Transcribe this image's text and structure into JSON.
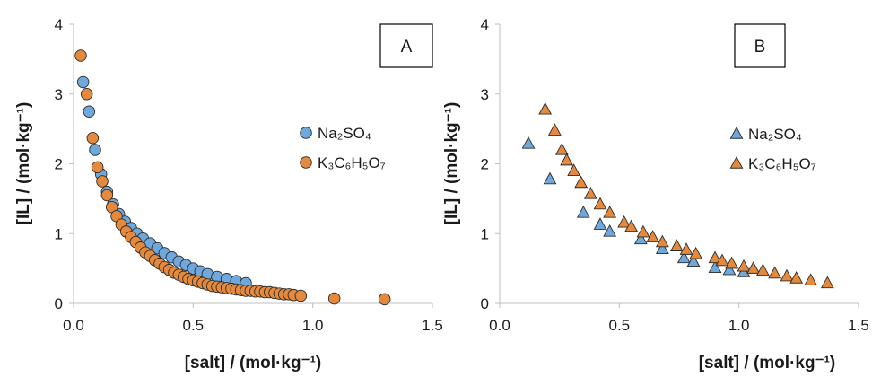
{
  "chart_data": [
    {
      "type": "scatter",
      "panel_label": "A",
      "xlabel": "[salt] / (mol·kg⁻¹)",
      "ylabel": "[IL] / (mol·kg⁻¹)",
      "xlim": [
        0,
        1.5
      ],
      "ylim": [
        0,
        4
      ],
      "xticks": [
        "0.0",
        "0.5",
        "1.0",
        "1.5"
      ],
      "yticks": [
        "0",
        "1",
        "2",
        "3",
        "4"
      ],
      "grid": false,
      "legend_position": "middle-right",
      "marker": "circle",
      "series": [
        {
          "name": "Na₂SO₄",
          "color": "#6fa8dc",
          "x": [
            0.04,
            0.065,
            0.09,
            0.115,
            0.14,
            0.165,
            0.19,
            0.215,
            0.24,
            0.265,
            0.29,
            0.32,
            0.35,
            0.38,
            0.41,
            0.44,
            0.47,
            0.5,
            0.53,
            0.56,
            0.6,
            0.64,
            0.68,
            0.72
          ],
          "y": [
            3.17,
            2.75,
            2.2,
            1.85,
            1.6,
            1.42,
            1.28,
            1.17,
            1.08,
            1.0,
            0.93,
            0.86,
            0.79,
            0.72,
            0.66,
            0.6,
            0.55,
            0.5,
            0.46,
            0.42,
            0.38,
            0.35,
            0.32,
            0.29
          ]
        },
        {
          "name": "K₃C₆H₅O₇",
          "color": "#e58a3d",
          "x": [
            0.03,
            0.055,
            0.08,
            0.1,
            0.12,
            0.14,
            0.16,
            0.18,
            0.2,
            0.22,
            0.24,
            0.26,
            0.28,
            0.3,
            0.32,
            0.34,
            0.36,
            0.38,
            0.4,
            0.42,
            0.44,
            0.46,
            0.48,
            0.5,
            0.52,
            0.54,
            0.56,
            0.58,
            0.6,
            0.62,
            0.64,
            0.66,
            0.68,
            0.7,
            0.72,
            0.74,
            0.76,
            0.78,
            0.8,
            0.82,
            0.84,
            0.86,
            0.88,
            0.9,
            0.92,
            0.95,
            1.09,
            1.3
          ],
          "y": [
            3.55,
            3.0,
            2.37,
            1.95,
            1.75,
            1.55,
            1.38,
            1.25,
            1.13,
            1.03,
            0.95,
            0.88,
            0.8,
            0.73,
            0.68,
            0.62,
            0.57,
            0.52,
            0.48,
            0.44,
            0.41,
            0.38,
            0.35,
            0.33,
            0.31,
            0.29,
            0.27,
            0.25,
            0.24,
            0.23,
            0.22,
            0.21,
            0.2,
            0.19,
            0.18,
            0.18,
            0.17,
            0.17,
            0.16,
            0.16,
            0.15,
            0.14,
            0.13,
            0.13,
            0.12,
            0.11,
            0.07,
            0.06
          ]
        }
      ]
    },
    {
      "type": "scatter",
      "panel_label": "B",
      "xlabel": "[salt] / (mol·kg⁻¹)",
      "ylabel": "[IL] / (mol·kg⁻¹)",
      "xlim": [
        0,
        1.5
      ],
      "ylim": [
        0,
        4
      ],
      "xticks": [
        "0.0",
        "0.5",
        "1.0",
        "1.5"
      ],
      "yticks": [
        "0",
        "1",
        "2",
        "3",
        "4"
      ],
      "grid": false,
      "legend_position": "middle-right",
      "marker": "triangle",
      "series": [
        {
          "name": "Na₂SO₄",
          "color": "#6fa8dc",
          "x": [
            0.12,
            0.21,
            0.35,
            0.42,
            0.46,
            0.59,
            0.68,
            0.77,
            0.81,
            0.9,
            0.96,
            1.02
          ],
          "y": [
            2.29,
            1.78,
            1.3,
            1.13,
            1.03,
            0.92,
            0.78,
            0.65,
            0.6,
            0.51,
            0.48,
            0.45
          ]
        },
        {
          "name": "K₃C₆H₅O₇",
          "color": "#e58a3d",
          "x": [
            0.19,
            0.23,
            0.26,
            0.28,
            0.31,
            0.34,
            0.38,
            0.42,
            0.46,
            0.52,
            0.55,
            0.6,
            0.64,
            0.68,
            0.74,
            0.78,
            0.82,
            0.9,
            0.93,
            0.97,
            1.02,
            1.06,
            1.1,
            1.15,
            1.2,
            1.24,
            1.3,
            1.37
          ],
          "y": [
            2.78,
            2.48,
            2.2,
            2.05,
            1.9,
            1.73,
            1.57,
            1.42,
            1.3,
            1.16,
            1.1,
            1.02,
            0.95,
            0.88,
            0.82,
            0.77,
            0.71,
            0.65,
            0.61,
            0.57,
            0.53,
            0.5,
            0.47,
            0.43,
            0.39,
            0.36,
            0.33,
            0.29
          ]
        }
      ]
    }
  ]
}
